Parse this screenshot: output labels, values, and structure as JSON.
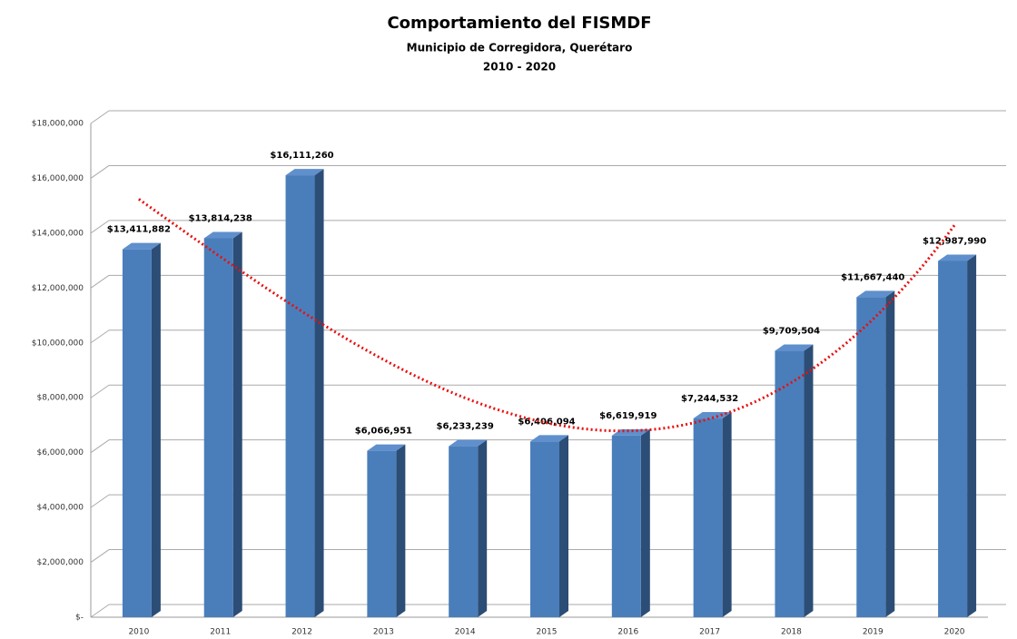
{
  "chart_data": {
    "type": "bar",
    "title": "Comportamiento del FISMDF",
    "subtitle": "Municipio de Corregidora, Querétaro",
    "subtitle2": "2010 - 2020",
    "categories": [
      "2010",
      "2011",
      "2012",
      "2013",
      "2014",
      "2015",
      "2016",
      "2017",
      "2018",
      "2019",
      "2020"
    ],
    "values": [
      13411882,
      13814238,
      16111260,
      6066951,
      6233239,
      6406094,
      6619919,
      7244532,
      9709504,
      11667440,
      12987990
    ],
    "value_labels": [
      "$13,411,882",
      "$13,814,238",
      "$16,111,260",
      "$6,066,951",
      "$6,233,239",
      "$6,406,094",
      "$6,619,919",
      "$7,244,532",
      "$9,709,504",
      "$11,667,440",
      "$12,987,990"
    ],
    "color": "#4a7ebb",
    "trendline_color": "#e81010",
    "ylim": [
      0,
      18000000
    ],
    "yticks": [
      {
        "value": 0,
        "label": "$-"
      },
      {
        "value": 2000000,
        "label": "$2,000,000"
      },
      {
        "value": 4000000,
        "label": "$4,000,000"
      },
      {
        "value": 6000000,
        "label": "$6,000,000"
      },
      {
        "value": 8000000,
        "label": "$8,000,000"
      },
      {
        "value": 10000000,
        "label": "$10,000,000"
      },
      {
        "value": 12000000,
        "label": "$12,000,000"
      },
      {
        "value": 14000000,
        "label": "$14,000,000"
      },
      {
        "value": 16000000,
        "label": "$16,000,000"
      },
      {
        "value": 18000000,
        "label": "$18,000,000"
      }
    ],
    "grid": true
  }
}
